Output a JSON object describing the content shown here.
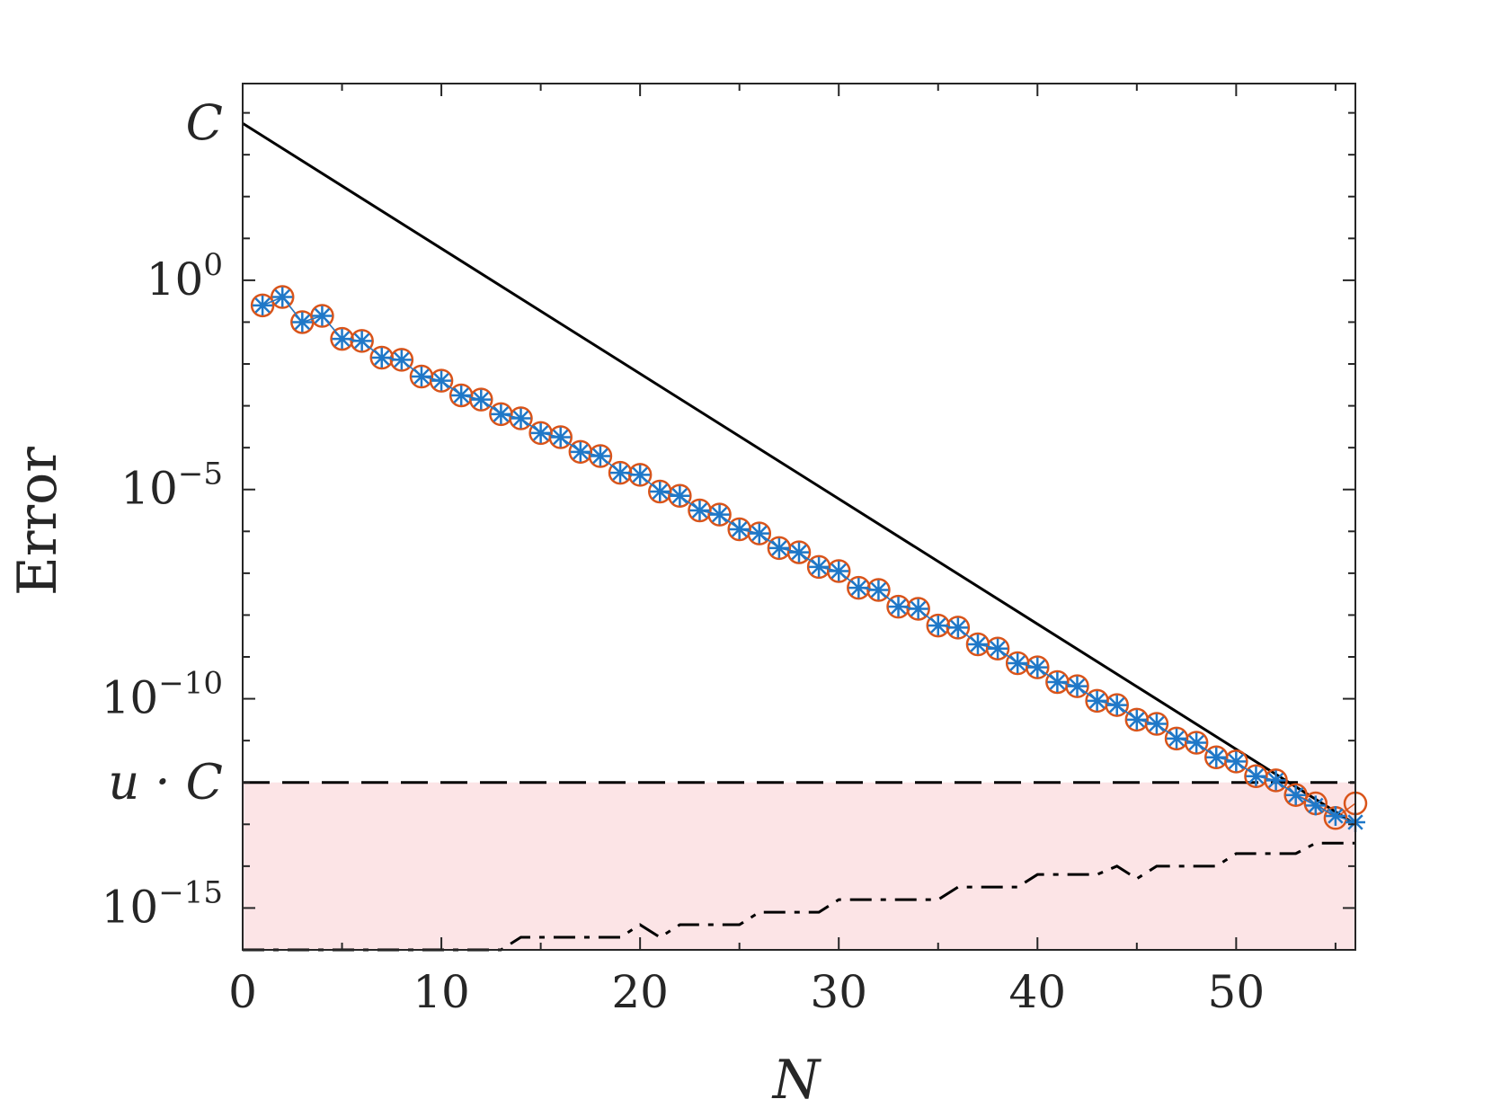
{
  "chart_data": {
    "type": "scatter",
    "xlabel": "N",
    "ylabel": "Error",
    "xlim": [
      0,
      56
    ],
    "ylim_log10": [
      -16.0,
      4.7
    ],
    "y_scale": "log",
    "grid": false,
    "x_ticks": [
      0,
      10,
      20,
      30,
      40,
      50
    ],
    "y_ticks": [
      {
        "value_log10": 0,
        "base": "10",
        "exp": "0"
      },
      {
        "value_log10": -5,
        "base": "10",
        "exp": "−5"
      },
      {
        "value_log10": -10,
        "base": "10",
        "exp": "−10"
      },
      {
        "value_log10": -15,
        "base": "10",
        "exp": "−15"
      }
    ],
    "special_labels": [
      {
        "text": "C",
        "value_log10": 3.75
      },
      {
        "text": "u · C",
        "value_log10": -12.0
      }
    ],
    "shaded_region": {
      "color": "#fce4e6",
      "from_log10": -16.0,
      "to_log10": -12.0
    },
    "colors": {
      "stars": "#1f78c8",
      "circles": "#d9541a",
      "lines": "#000000"
    },
    "series": [
      {
        "style": "solid-line",
        "x": [
          0,
          56
        ],
        "y_log10": [
          3.75,
          -13.0
        ]
      },
      {
        "style": "dashed-line",
        "x": [
          0,
          56
        ],
        "y_log10": [
          -12.0,
          -12.0
        ]
      },
      {
        "style": "dash-dot-line",
        "x": [
          0,
          13,
          14,
          19,
          20,
          21,
          22,
          25,
          26,
          29,
          30,
          35,
          36,
          39,
          40,
          43,
          44,
          45,
          46,
          49,
          50,
          53,
          54,
          56
        ],
        "y_log10": [
          -16.0,
          -16.0,
          -15.7,
          -15.7,
          -15.4,
          -15.7,
          -15.4,
          -15.4,
          -15.1,
          -15.1,
          -14.8,
          -14.8,
          -14.5,
          -14.5,
          -14.2,
          -14.2,
          -14.0,
          -14.3,
          -14.0,
          -14.0,
          -13.7,
          -13.7,
          -13.45,
          -13.45
        ]
      },
      {
        "style": "circle-markers",
        "x": [
          1,
          2,
          3,
          4,
          5,
          6,
          7,
          8,
          9,
          10,
          11,
          12,
          13,
          14,
          15,
          16,
          17,
          18,
          19,
          20,
          21,
          22,
          23,
          24,
          25,
          26,
          27,
          28,
          29,
          30,
          31,
          32,
          33,
          34,
          35,
          36,
          37,
          38,
          39,
          40,
          41,
          42,
          43,
          44,
          45,
          46,
          47,
          48,
          49,
          50,
          51,
          52,
          53,
          54,
          55,
          56
        ],
        "y_log10": [
          -0.6,
          -0.4,
          -1.0,
          -0.85,
          -1.4,
          -1.45,
          -1.85,
          -1.9,
          -2.3,
          -2.4,
          -2.75,
          -2.85,
          -3.2,
          -3.3,
          -3.65,
          -3.75,
          -4.1,
          -4.2,
          -4.6,
          -4.65,
          -5.05,
          -5.15,
          -5.5,
          -5.6,
          -5.95,
          -6.05,
          -6.4,
          -6.5,
          -6.85,
          -6.95,
          -7.35,
          -7.4,
          -7.8,
          -7.85,
          -8.25,
          -8.3,
          -8.7,
          -8.8,
          -9.15,
          -9.25,
          -9.6,
          -9.7,
          -10.05,
          -10.15,
          -10.5,
          -10.6,
          -10.95,
          -11.05,
          -11.4,
          -11.5,
          -11.85,
          -11.95,
          -12.3,
          -12.5,
          -12.85,
          -12.5
        ]
      },
      {
        "style": "star-markers",
        "x": [
          1,
          2,
          3,
          4,
          5,
          6,
          7,
          8,
          9,
          10,
          11,
          12,
          13,
          14,
          15,
          16,
          17,
          18,
          19,
          20,
          21,
          22,
          23,
          24,
          25,
          26,
          27,
          28,
          29,
          30,
          31,
          32,
          33,
          34,
          35,
          36,
          37,
          38,
          39,
          40,
          41,
          42,
          43,
          44,
          45,
          46,
          47,
          48,
          49,
          50,
          51,
          52,
          53,
          54,
          55,
          56
        ],
        "y_log10": [
          -0.6,
          -0.4,
          -1.0,
          -0.85,
          -1.4,
          -1.45,
          -1.85,
          -1.9,
          -2.3,
          -2.4,
          -2.75,
          -2.85,
          -3.2,
          -3.3,
          -3.65,
          -3.75,
          -4.1,
          -4.2,
          -4.6,
          -4.65,
          -5.05,
          -5.15,
          -5.5,
          -5.6,
          -5.95,
          -6.05,
          -6.4,
          -6.5,
          -6.85,
          -6.95,
          -7.35,
          -7.4,
          -7.8,
          -7.85,
          -8.25,
          -8.3,
          -8.7,
          -8.8,
          -9.15,
          -9.25,
          -9.6,
          -9.7,
          -10.05,
          -10.15,
          -10.5,
          -10.6,
          -10.95,
          -11.05,
          -11.4,
          -11.5,
          -11.85,
          -11.95,
          -12.3,
          -12.55,
          -12.8,
          -12.95
        ]
      }
    ]
  }
}
